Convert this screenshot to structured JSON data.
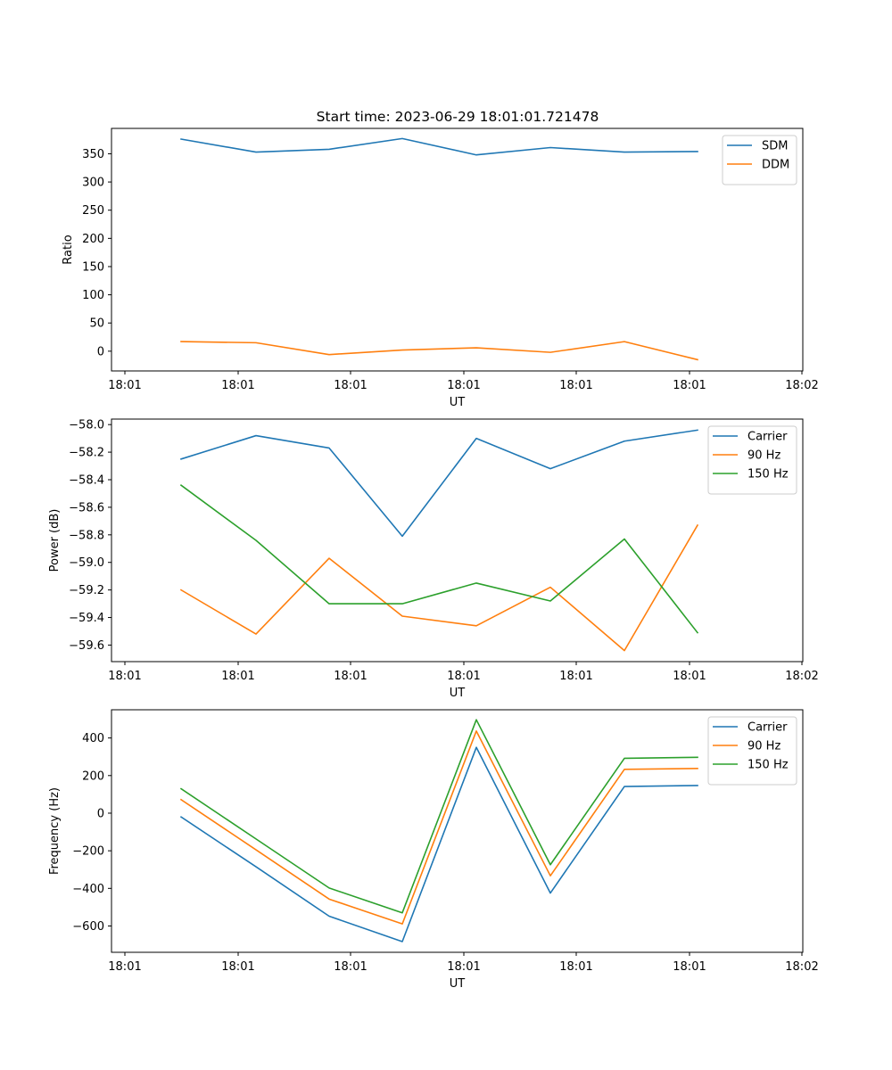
{
  "figure": {
    "title": "Start time: 2023-06-29 18:01:01.721478"
  },
  "chart_data": [
    {
      "type": "line",
      "xlabel": "UT",
      "ylabel": "Ratio",
      "x_tick_labels": [
        "18:01",
        "18:01",
        "18:01",
        "18:01",
        "18:01",
        "18:01",
        "18:02"
      ],
      "y_ticks": [
        0,
        50,
        100,
        150,
        200,
        250,
        300,
        350
      ],
      "ylim": [
        -35,
        395
      ],
      "legend_position": "top-right",
      "series": [
        {
          "name": "SDM",
          "color": "#1f77b4",
          "values": [
            376,
            353,
            358,
            377,
            348,
            361,
            353,
            354
          ]
        },
        {
          "name": "DDM",
          "color": "#ff7f0e",
          "values": [
            17,
            15,
            -6,
            2,
            6,
            -2,
            17,
            -15
          ]
        }
      ]
    },
    {
      "type": "line",
      "xlabel": "UT",
      "ylabel": "Power (dB)",
      "x_tick_labels": [
        "18:01",
        "18:01",
        "18:01",
        "18:01",
        "18:01",
        "18:01",
        "18:02"
      ],
      "y_ticks": [
        -59.6,
        -59.4,
        -59.2,
        -59.0,
        -58.8,
        -58.6,
        -58.4,
        -58.2,
        -58.0
      ],
      "y_tick_labels": [
        "−59.6",
        "−59.4",
        "−59.2",
        "−59.0",
        "−58.8",
        "−58.6",
        "−58.4",
        "−58.2",
        "−58.0"
      ],
      "ylim": [
        -59.72,
        -57.96
      ],
      "legend_position": "top-right",
      "series": [
        {
          "name": "Carrier",
          "color": "#1f77b4",
          "values": [
            -58.25,
            -58.08,
            -58.17,
            -58.81,
            -58.1,
            -58.32,
            -58.12,
            -58.04
          ]
        },
        {
          "name": "90 Hz",
          "color": "#ff7f0e",
          "values": [
            -59.2,
            -59.52,
            -58.97,
            -59.39,
            -59.46,
            -59.18,
            -59.64,
            -58.73
          ]
        },
        {
          "name": "150 Hz",
          "color": "#2ca02c",
          "values": [
            -58.44,
            -58.84,
            -59.3,
            -59.3,
            -59.15,
            -59.28,
            -58.83,
            -59.51
          ]
        }
      ]
    },
    {
      "type": "line",
      "xlabel": "UT",
      "ylabel": "Frequency (Hz)",
      "x_tick_labels": [
        "18:01",
        "18:01",
        "18:01",
        "18:01",
        "18:01",
        "18:01",
        "18:02"
      ],
      "y_ticks": [
        -600,
        -400,
        -200,
        0,
        200,
        400
      ],
      "y_tick_labels": [
        "−600",
        "−400",
        "−200",
        "0",
        "200",
        "400"
      ],
      "ylim": [
        -740,
        550
      ],
      "legend_position": "top-right",
      "series": [
        {
          "name": "Carrier",
          "color": "#1f77b4",
          "values": [
            -20,
            -285,
            -548,
            -683,
            350,
            -425,
            142,
            147
          ]
        },
        {
          "name": "90 Hz",
          "color": "#ff7f0e",
          "values": [
            72,
            -195,
            -457,
            -589,
            437,
            -333,
            233,
            238
          ]
        },
        {
          "name": "150 Hz",
          "color": "#2ca02c",
          "values": [
            130,
            -137,
            -398,
            -530,
            497,
            -274,
            292,
            297
          ]
        }
      ]
    }
  ]
}
